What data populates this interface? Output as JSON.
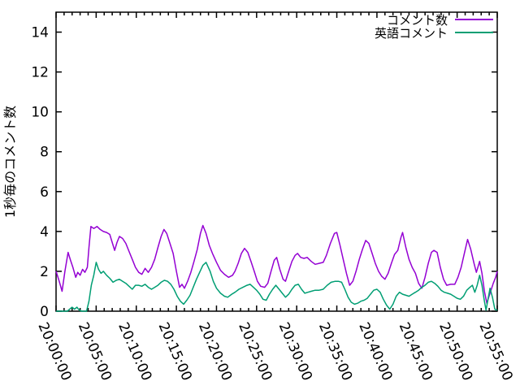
{
  "chart_data": {
    "type": "line",
    "title": "",
    "xlabel": "",
    "ylabel": "1秒毎のコメント数",
    "x_unit": "time HH:MM:SS (minutes after 20:00:00)",
    "xlim": [
      0,
      55
    ],
    "ylim": [
      0,
      15
    ],
    "grid": false,
    "legend_position": "top-right inside, no box",
    "yticks": [
      0,
      2,
      4,
      6,
      8,
      10,
      12,
      14
    ],
    "xticks": {
      "minutes": [
        0,
        5,
        10,
        15,
        20,
        25,
        30,
        35,
        40,
        45,
        50,
        55
      ],
      "labels": [
        "20:00:00",
        "20:05:00",
        "20:10:00",
        "20:15:00",
        "20:20:00",
        "20:25:00",
        "20:30:00",
        "20:35:00",
        "20:40:00",
        "20:45:00",
        "20:50:00",
        "20:55:00"
      ]
    },
    "minor_xtick_every_minutes": 1,
    "axis_color": "#000000",
    "series": [
      {
        "name": "コメント数",
        "color": "#9400d3",
        "points": [
          [
            0,
            2.0
          ],
          [
            0.4,
            1.5
          ],
          [
            0.75,
            1.0
          ],
          [
            1.1,
            2.0
          ],
          [
            1.5,
            2.95
          ],
          [
            1.8,
            2.55
          ],
          [
            2.1,
            2.2
          ],
          [
            2.45,
            1.7
          ],
          [
            2.7,
            1.95
          ],
          [
            3.0,
            1.8
          ],
          [
            3.3,
            2.1
          ],
          [
            3.6,
            1.95
          ],
          [
            3.9,
            2.2
          ],
          [
            4.1,
            3.2
          ],
          [
            4.35,
            4.25
          ],
          [
            4.7,
            4.15
          ],
          [
            5.1,
            4.25
          ],
          [
            5.5,
            4.1
          ],
          [
            5.9,
            4.0
          ],
          [
            6.3,
            3.95
          ],
          [
            6.7,
            3.85
          ],
          [
            7.0,
            3.45
          ],
          [
            7.3,
            3.05
          ],
          [
            7.6,
            3.45
          ],
          [
            7.9,
            3.75
          ],
          [
            8.3,
            3.65
          ],
          [
            8.7,
            3.4
          ],
          [
            9.1,
            3.0
          ],
          [
            9.5,
            2.6
          ],
          [
            9.9,
            2.2
          ],
          [
            10.3,
            1.95
          ],
          [
            10.7,
            1.85
          ],
          [
            11.1,
            2.15
          ],
          [
            11.5,
            1.95
          ],
          [
            11.9,
            2.2
          ],
          [
            12.3,
            2.6
          ],
          [
            12.7,
            3.2
          ],
          [
            13.1,
            3.75
          ],
          [
            13.45,
            4.1
          ],
          [
            13.8,
            3.9
          ],
          [
            14.2,
            3.4
          ],
          [
            14.6,
            2.9
          ],
          [
            15.0,
            2.0
          ],
          [
            15.4,
            1.2
          ],
          [
            15.7,
            1.35
          ],
          [
            16.0,
            1.15
          ],
          [
            16.4,
            1.5
          ],
          [
            16.8,
            1.95
          ],
          [
            17.2,
            2.5
          ],
          [
            17.6,
            3.1
          ],
          [
            18.0,
            3.9
          ],
          [
            18.3,
            4.3
          ],
          [
            18.7,
            3.9
          ],
          [
            19.1,
            3.3
          ],
          [
            19.5,
            2.9
          ],
          [
            20.0,
            2.45
          ],
          [
            20.5,
            2.05
          ],
          [
            21.0,
            1.85
          ],
          [
            21.5,
            1.7
          ],
          [
            22.0,
            1.8
          ],
          [
            22.3,
            2.0
          ],
          [
            22.7,
            2.4
          ],
          [
            23.1,
            2.9
          ],
          [
            23.5,
            3.15
          ],
          [
            23.9,
            2.95
          ],
          [
            24.3,
            2.5
          ],
          [
            24.7,
            2.0
          ],
          [
            25.1,
            1.5
          ],
          [
            25.5,
            1.25
          ],
          [
            26.0,
            1.2
          ],
          [
            26.4,
            1.4
          ],
          [
            26.8,
            2.0
          ],
          [
            27.2,
            2.55
          ],
          [
            27.5,
            2.7
          ],
          [
            27.9,
            2.1
          ],
          [
            28.3,
            1.6
          ],
          [
            28.6,
            1.5
          ],
          [
            29.0,
            2.0
          ],
          [
            29.4,
            2.5
          ],
          [
            29.8,
            2.8
          ],
          [
            30.1,
            2.9
          ],
          [
            30.5,
            2.7
          ],
          [
            30.9,
            2.65
          ],
          [
            31.3,
            2.7
          ],
          [
            31.8,
            2.5
          ],
          [
            32.3,
            2.35
          ],
          [
            32.8,
            2.4
          ],
          [
            33.3,
            2.45
          ],
          [
            33.7,
            2.8
          ],
          [
            34.2,
            3.4
          ],
          [
            34.7,
            3.9
          ],
          [
            35.0,
            3.95
          ],
          [
            35.4,
            3.3
          ],
          [
            35.8,
            2.6
          ],
          [
            36.2,
            1.9
          ],
          [
            36.6,
            1.3
          ],
          [
            37.0,
            1.5
          ],
          [
            37.4,
            2.0
          ],
          [
            37.8,
            2.6
          ],
          [
            38.2,
            3.1
          ],
          [
            38.6,
            3.55
          ],
          [
            39.0,
            3.4
          ],
          [
            39.4,
            2.9
          ],
          [
            39.8,
            2.4
          ],
          [
            40.2,
            2.0
          ],
          [
            40.6,
            1.75
          ],
          [
            41.0,
            1.6
          ],
          [
            41.4,
            1.9
          ],
          [
            41.8,
            2.4
          ],
          [
            42.2,
            2.85
          ],
          [
            42.6,
            3.05
          ],
          [
            43.0,
            3.7
          ],
          [
            43.2,
            3.95
          ],
          [
            43.6,
            3.2
          ],
          [
            44.0,
            2.6
          ],
          [
            44.4,
            2.2
          ],
          [
            44.8,
            1.9
          ],
          [
            45.2,
            1.4
          ],
          [
            45.6,
            1.15
          ],
          [
            46.0,
            1.7
          ],
          [
            46.4,
            2.4
          ],
          [
            46.8,
            2.95
          ],
          [
            47.1,
            3.05
          ],
          [
            47.5,
            2.95
          ],
          [
            47.9,
            2.2
          ],
          [
            48.3,
            1.6
          ],
          [
            48.7,
            1.3
          ],
          [
            49.2,
            1.35
          ],
          [
            49.7,
            1.35
          ],
          [
            50.1,
            1.7
          ],
          [
            50.5,
            2.2
          ],
          [
            50.9,
            2.9
          ],
          [
            51.3,
            3.6
          ],
          [
            51.7,
            3.1
          ],
          [
            52.1,
            2.4
          ],
          [
            52.4,
            1.95
          ],
          [
            52.8,
            2.5
          ],
          [
            53.1,
            1.9
          ],
          [
            53.4,
            1.0
          ],
          [
            53.7,
            0.4
          ],
          [
            54.1,
            0.9
          ],
          [
            54.5,
            1.4
          ],
          [
            54.8,
            1.7
          ],
          [
            55,
            2.0
          ]
        ]
      },
      {
        "name": "英語コメント",
        "color": "#009e73",
        "points": [
          [
            0,
            0
          ],
          [
            1.4,
            0
          ],
          [
            1.7,
            0.1
          ],
          [
            2.0,
            0.2
          ],
          [
            2.3,
            0.1
          ],
          [
            2.6,
            0.2
          ],
          [
            2.9,
            0.05
          ],
          [
            3.2,
            0
          ],
          [
            3.8,
            0
          ],
          [
            4.1,
            0.5
          ],
          [
            4.4,
            1.3
          ],
          [
            4.7,
            1.8
          ],
          [
            5.0,
            2.45
          ],
          [
            5.3,
            2.1
          ],
          [
            5.6,
            1.9
          ],
          [
            5.9,
            2.0
          ],
          [
            6.3,
            1.8
          ],
          [
            6.7,
            1.65
          ],
          [
            7.1,
            1.45
          ],
          [
            7.5,
            1.55
          ],
          [
            7.9,
            1.6
          ],
          [
            8.3,
            1.5
          ],
          [
            8.7,
            1.4
          ],
          [
            9.1,
            1.25
          ],
          [
            9.5,
            1.1
          ],
          [
            9.9,
            1.3
          ],
          [
            10.3,
            1.3
          ],
          [
            10.7,
            1.25
          ],
          [
            11.1,
            1.35
          ],
          [
            11.5,
            1.2
          ],
          [
            11.9,
            1.1
          ],
          [
            12.3,
            1.2
          ],
          [
            12.7,
            1.3
          ],
          [
            13.1,
            1.45
          ],
          [
            13.5,
            1.55
          ],
          [
            13.9,
            1.5
          ],
          [
            14.3,
            1.35
          ],
          [
            14.7,
            1.1
          ],
          [
            15.1,
            0.75
          ],
          [
            15.5,
            0.5
          ],
          [
            15.9,
            0.35
          ],
          [
            16.3,
            0.55
          ],
          [
            16.7,
            0.8
          ],
          [
            17.1,
            1.2
          ],
          [
            17.5,
            1.6
          ],
          [
            17.9,
            1.95
          ],
          [
            18.3,
            2.3
          ],
          [
            18.7,
            2.45
          ],
          [
            19.2,
            2.0
          ],
          [
            19.6,
            1.5
          ],
          [
            20.0,
            1.15
          ],
          [
            20.5,
            0.9
          ],
          [
            21.0,
            0.75
          ],
          [
            21.4,
            0.7
          ],
          [
            21.9,
            0.85
          ],
          [
            22.3,
            0.95
          ],
          [
            22.8,
            1.1
          ],
          [
            23.3,
            1.2
          ],
          [
            23.8,
            1.3
          ],
          [
            24.2,
            1.35
          ],
          [
            24.6,
            1.2
          ],
          [
            25.0,
            1.05
          ],
          [
            25.4,
            0.85
          ],
          [
            25.8,
            0.6
          ],
          [
            26.2,
            0.55
          ],
          [
            26.6,
            0.85
          ],
          [
            27.0,
            1.1
          ],
          [
            27.4,
            1.3
          ],
          [
            27.8,
            1.1
          ],
          [
            28.2,
            0.9
          ],
          [
            28.6,
            0.7
          ],
          [
            29.0,
            0.85
          ],
          [
            29.4,
            1.1
          ],
          [
            29.8,
            1.3
          ],
          [
            30.2,
            1.35
          ],
          [
            30.6,
            1.1
          ],
          [
            31.0,
            0.9
          ],
          [
            31.4,
            0.95
          ],
          [
            31.8,
            1.0
          ],
          [
            32.3,
            1.05
          ],
          [
            32.8,
            1.05
          ],
          [
            33.3,
            1.1
          ],
          [
            33.8,
            1.3
          ],
          [
            34.3,
            1.45
          ],
          [
            34.8,
            1.5
          ],
          [
            35.2,
            1.5
          ],
          [
            35.6,
            1.45
          ],
          [
            36.0,
            1.1
          ],
          [
            36.4,
            0.7
          ],
          [
            36.8,
            0.45
          ],
          [
            37.2,
            0.35
          ],
          [
            37.6,
            0.4
          ],
          [
            38.0,
            0.5
          ],
          [
            38.4,
            0.55
          ],
          [
            38.8,
            0.65
          ],
          [
            39.2,
            0.85
          ],
          [
            39.6,
            1.05
          ],
          [
            40.0,
            1.1
          ],
          [
            40.4,
            0.95
          ],
          [
            40.8,
            0.6
          ],
          [
            41.2,
            0.3
          ],
          [
            41.6,
            0.1
          ],
          [
            42.0,
            0.35
          ],
          [
            42.4,
            0.75
          ],
          [
            42.8,
            0.95
          ],
          [
            43.2,
            0.85
          ],
          [
            43.6,
            0.8
          ],
          [
            44.0,
            0.75
          ],
          [
            44.4,
            0.85
          ],
          [
            44.8,
            0.95
          ],
          [
            45.2,
            1.05
          ],
          [
            45.6,
            1.2
          ],
          [
            46.0,
            1.3
          ],
          [
            46.4,
            1.45
          ],
          [
            46.8,
            1.5
          ],
          [
            47.2,
            1.4
          ],
          [
            47.6,
            1.25
          ],
          [
            48.0,
            1.05
          ],
          [
            48.4,
            0.95
          ],
          [
            48.8,
            0.9
          ],
          [
            49.2,
            0.85
          ],
          [
            49.6,
            0.75
          ],
          [
            50.0,
            0.65
          ],
          [
            50.4,
            0.6
          ],
          [
            50.8,
            0.75
          ],
          [
            51.2,
            1.05
          ],
          [
            51.6,
            1.2
          ],
          [
            51.9,
            1.3
          ],
          [
            52.2,
            0.95
          ],
          [
            52.5,
            1.3
          ],
          [
            52.8,
            1.8
          ],
          [
            53.1,
            1.3
          ],
          [
            53.4,
            0.5
          ],
          [
            53.6,
            0.05
          ],
          [
            53.9,
            0.7
          ],
          [
            54.1,
            1.15
          ],
          [
            54.4,
            0.7
          ],
          [
            54.7,
            0.1
          ],
          [
            55,
            0.05
          ]
        ]
      }
    ]
  }
}
